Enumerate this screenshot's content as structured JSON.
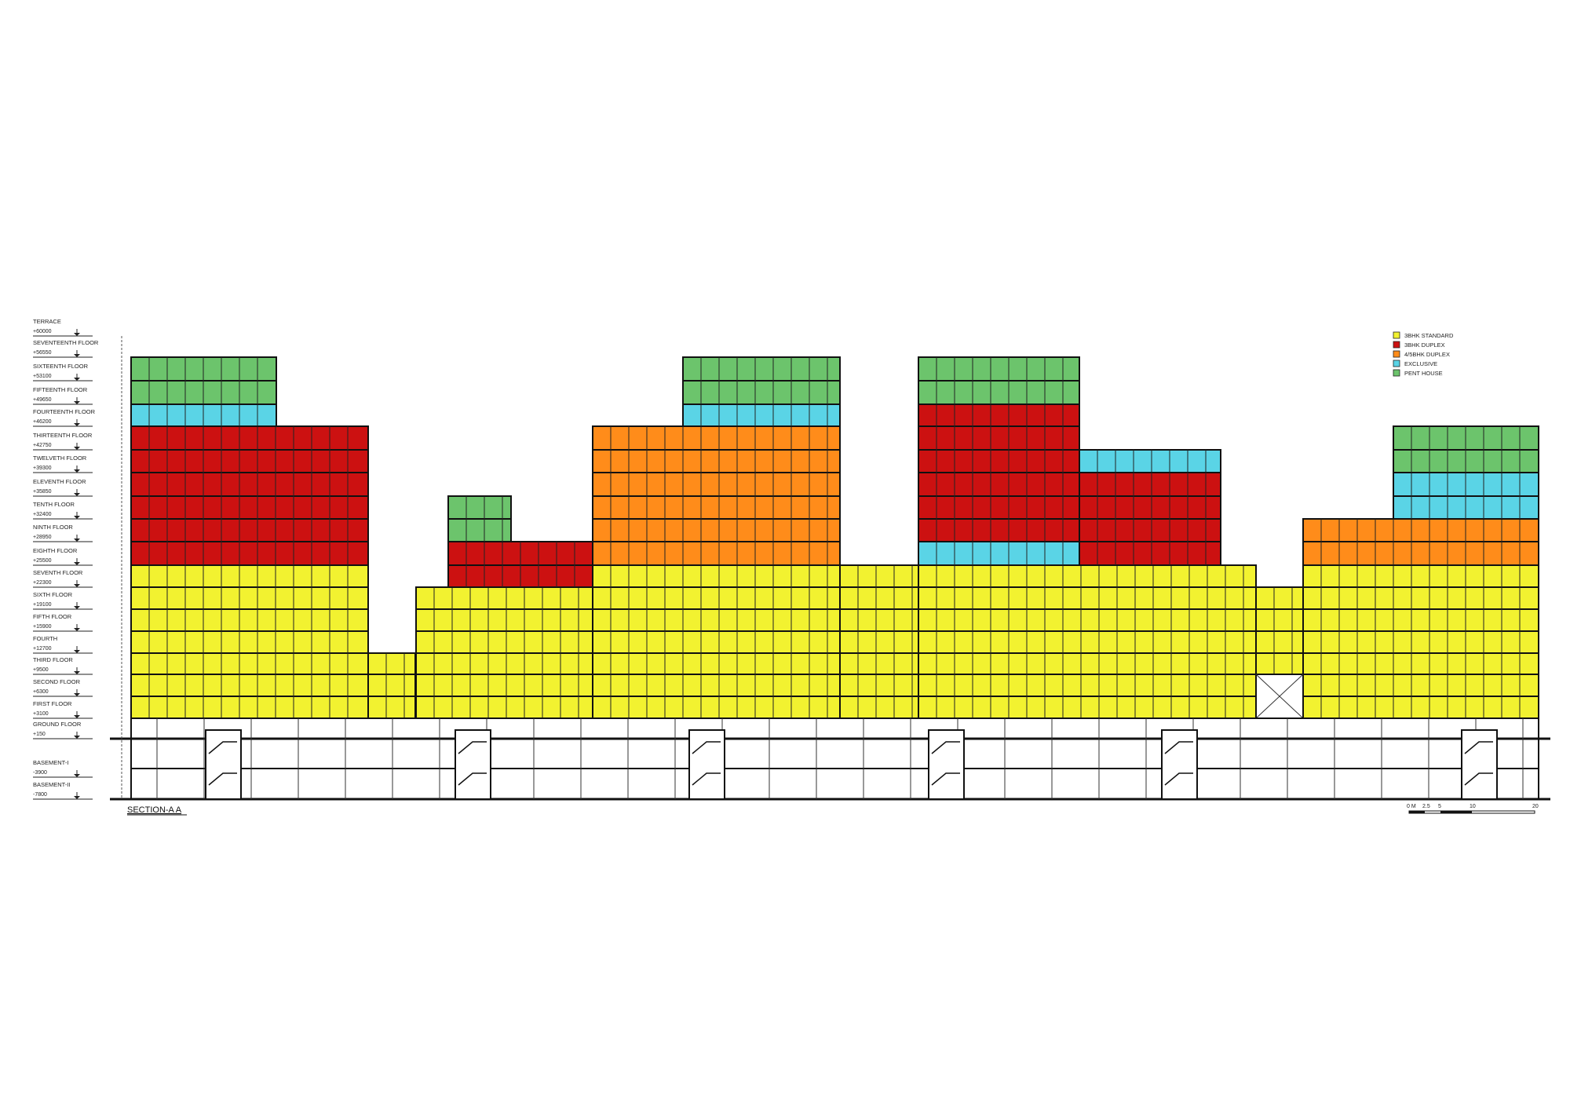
{
  "title": "SECTION-A A",
  "levels": [
    {
      "name": "TERRACE",
      "elev": "+60000"
    },
    {
      "name": "SEVENTEENTH FLOOR",
      "elev": "+56550"
    },
    {
      "name": "SIXTEENTH FLOOR",
      "elev": "+53100"
    },
    {
      "name": "FIFTEENTH FLOOR",
      "elev": "+49650"
    },
    {
      "name": "FOURTEENTH FLOOR",
      "elev": "+46200"
    },
    {
      "name": "THIRTEENTH FLOOR",
      "elev": "+42750"
    },
    {
      "name": "TWELVETH FLOOR",
      "elev": "+39300"
    },
    {
      "name": "ELEVENTH FLOOR",
      "elev": "+35850"
    },
    {
      "name": "TENTH FLOOR",
      "elev": "+32400"
    },
    {
      "name": "NINTH FLOOR",
      "elev": "+28950"
    },
    {
      "name": "EIGHTH FLOOR",
      "elev": "+25500"
    },
    {
      "name": "SEVENTH FLOOR",
      "elev": "+22300"
    },
    {
      "name": "SIXTH FLOOR",
      "elev": "+19100"
    },
    {
      "name": "FIFTH FLOOR",
      "elev": "+15900"
    },
    {
      "name": "FOURTH",
      "elev": "+12700"
    },
    {
      "name": "THIRD FLOOR",
      "elev": "+9500"
    },
    {
      "name": "SECOND FLOOR",
      "elev": "+6300"
    },
    {
      "name": "FIRST FLOOR",
      "elev": "+3100"
    },
    {
      "name": "GROUND FLOOR",
      "elev": "+150"
    },
    {
      "name": "BASEMENT-I",
      "elev": "-3900"
    },
    {
      "name": "BASEMENT-II",
      "elev": "-7800"
    }
  ],
  "legend": [
    {
      "label": "3BHK STANDARD",
      "color": "#f2f230"
    },
    {
      "label": "3BHK DUPLEX",
      "color": "#cc1111"
    },
    {
      "label": "4/5BHK DUPLEX",
      "color": "#ff8c1a"
    },
    {
      "label": "EXCLUSIVE",
      "color": "#5ad4e6"
    },
    {
      "label": "PENT HOUSE",
      "color": "#6cc46c"
    }
  ],
  "scale_labels": [
    "0 M",
    "2.5",
    "5",
    "10",
    "20"
  ]
}
